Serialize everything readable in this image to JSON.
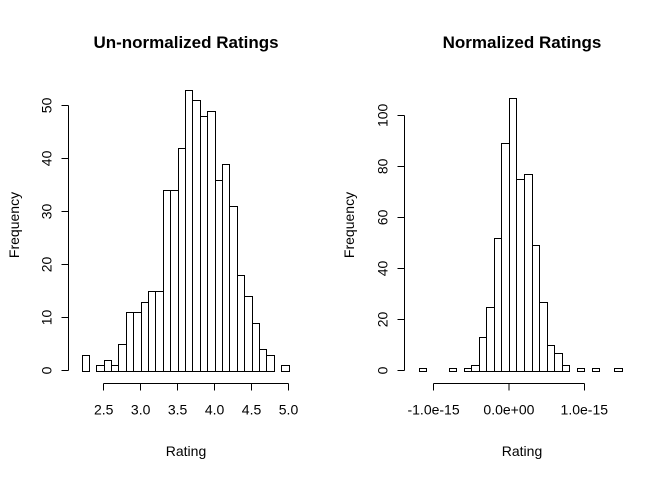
{
  "chart_data": [
    {
      "type": "bar",
      "title": "Un-normalized Ratings",
      "xlabel": "Rating",
      "ylabel": "Frequency",
      "bin_width": 0.1,
      "bin_starts": [
        2.2,
        2.3,
        2.4,
        2.5,
        2.6,
        2.7,
        2.8,
        2.9,
        3.0,
        3.1,
        3.2,
        3.3,
        3.4,
        3.5,
        3.6,
        3.7,
        3.8,
        3.9,
        4.0,
        4.1,
        4.2,
        4.3,
        4.4,
        4.5,
        4.6,
        4.7,
        4.8,
        4.9
      ],
      "values": [
        3,
        0,
        1,
        2,
        1,
        5,
        11,
        11,
        13,
        15,
        15,
        34,
        34,
        42,
        53,
        51,
        48,
        49,
        36,
        39,
        31,
        18,
        14,
        9,
        4,
        3,
        0,
        1
      ],
      "xlim": [
        2.2,
        5.0
      ],
      "ylim": [
        0,
        53
      ],
      "x_ticks": [
        2.5,
        3.0,
        3.5,
        4.0,
        4.5,
        5.0
      ],
      "x_tick_labels": [
        "2.5",
        "3.0",
        "3.5",
        "4.0",
        "4.5",
        "5.0"
      ],
      "y_ticks": [
        0,
        10,
        20,
        30,
        40,
        50
      ],
      "y_tick_labels": [
        "0",
        "10",
        "20",
        "30",
        "40",
        "50"
      ],
      "grid": false
    },
    {
      "type": "bar",
      "title": "Normalized Ratings",
      "xlabel": "Rating",
      "ylabel": "Frequency",
      "bin_width": 1e-16,
      "bin_starts": [
        -1.2e-15,
        -1.1e-15,
        -1e-15,
        -9e-16,
        -8e-16,
        -7e-16,
        -6e-16,
        -5e-16,
        -4e-16,
        -3e-16,
        -2e-16,
        -1e-16,
        0,
        1e-16,
        2e-16,
        3e-16,
        4e-16,
        5e-16,
        6e-16,
        7e-16,
        8e-16,
        9e-16,
        1e-15,
        1.1e-15,
        1.2e-15,
        1.3e-15,
        1.4e-15,
        1.5e-15
      ],
      "values": [
        1,
        0,
        0,
        0,
        1,
        0,
        1,
        2,
        13,
        25,
        52,
        89,
        107,
        75,
        77,
        49,
        27,
        10,
        7,
        2,
        0,
        1,
        0,
        1,
        0,
        0,
        1,
        0
      ],
      "xlim": [
        -1.2e-15,
        1.6e-15
      ],
      "ylim": [
        0,
        107
      ],
      "x_ticks": [
        -1e-15,
        0,
        1e-15
      ],
      "x_tick_labels": [
        "-1.0e-15",
        "0.0e+00",
        "1.0e-15"
      ],
      "y_ticks": [
        0,
        20,
        40,
        60,
        80,
        100
      ],
      "y_tick_labels": [
        "0",
        "20",
        "40",
        "60",
        "80",
        "100"
      ],
      "grid": false
    }
  ]
}
